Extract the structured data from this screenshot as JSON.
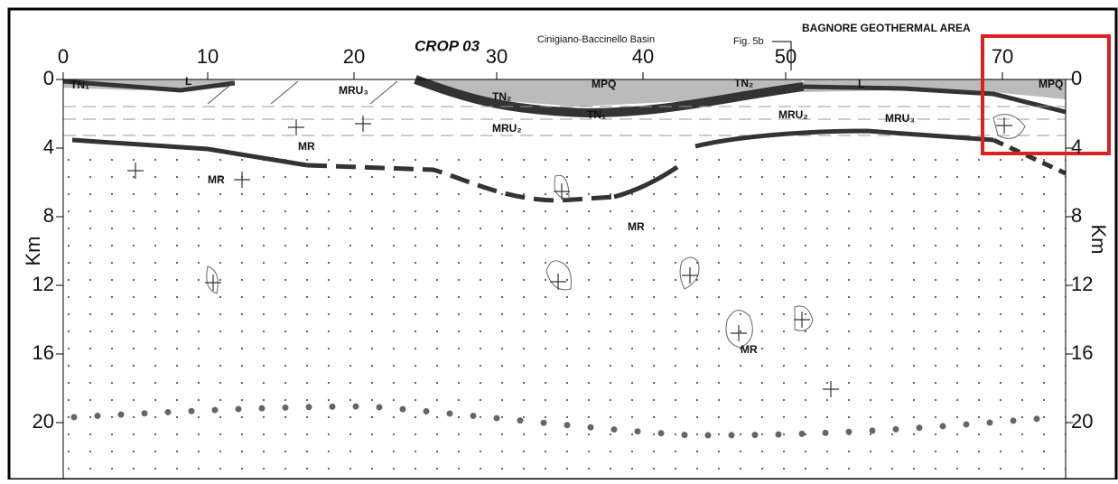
{
  "header": {
    "title": "CROP 03",
    "basin": "Cinigiano-Baccinello Basin",
    "figure_ref": "Fig. 5b",
    "area": "BAGNORE GEOTHERMAL AREA"
  },
  "axes": {
    "unit": "Km",
    "distance_ticks": [
      "0",
      "10",
      "20",
      "30",
      "40",
      "50",
      "70"
    ],
    "depth_ticks": [
      "0",
      "4",
      "8",
      "12",
      "16",
      "20"
    ]
  },
  "units": [
    "TN₁",
    "L",
    "MRU₃",
    "TN₂",
    "MPQ",
    "TN₁",
    "MRU₂",
    "TN₂",
    "MRU₂",
    "MRU₃",
    "L",
    "MPQ",
    "MR",
    "MR",
    "MR",
    "MR"
  ]
}
